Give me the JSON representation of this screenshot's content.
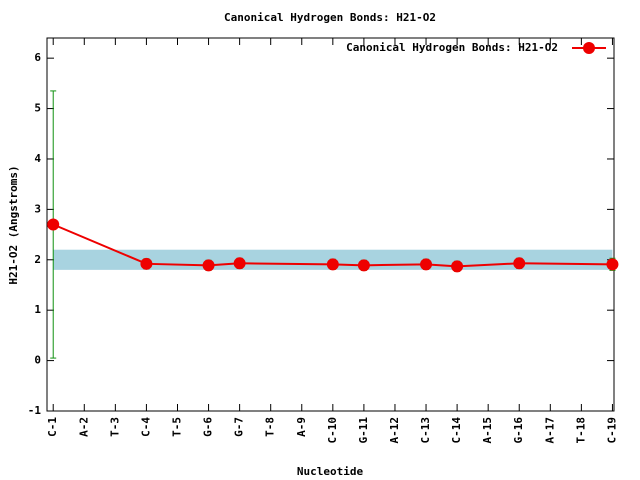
{
  "chart_data": {
    "type": "line",
    "title": "Canonical Hydrogen Bonds: H21-O2",
    "x_label": "Nucleotide",
    "y_label": "H21-O2 (Angstroms)",
    "xlim": [
      0.8,
      19.05
    ],
    "ylim": [
      -1,
      6.4
    ],
    "yticks": [
      -1,
      0,
      1,
      2,
      3,
      4,
      5,
      6
    ],
    "xticks": [
      {
        "value": 1,
        "label": "C-1"
      },
      {
        "value": 2,
        "label": "A-2"
      },
      {
        "value": 3,
        "label": "T-3"
      },
      {
        "value": 4,
        "label": "C-4"
      },
      {
        "value": 5,
        "label": "T-5"
      },
      {
        "value": 6,
        "label": "G-6"
      },
      {
        "value": 7,
        "label": "G-7"
      },
      {
        "value": 8,
        "label": "T-8"
      },
      {
        "value": 9,
        "label": "A-9"
      },
      {
        "value": 10,
        "label": "C-10"
      },
      {
        "value": 11,
        "label": "G-11"
      },
      {
        "value": 12,
        "label": "A-12"
      },
      {
        "value": 13,
        "label": "C-13"
      },
      {
        "value": 14,
        "label": "C-14"
      },
      {
        "value": 15,
        "label": "A-15"
      },
      {
        "value": 16,
        "label": "G-16"
      },
      {
        "value": 17,
        "label": "A-17"
      },
      {
        "value": 18,
        "label": "T-18"
      },
      {
        "value": 19,
        "label": "C-19"
      }
    ],
    "reference_band": [
      1.8,
      2.2
    ],
    "band_color": "#a8d3e0",
    "legend": "upper right",
    "error_color": "#109010",
    "series": [
      {
        "name": "Canonical Hydrogen Bonds: H21-O2",
        "color": "#ee0000",
        "x": [
          1,
          4,
          6,
          7,
          10,
          11,
          13,
          14,
          16,
          19
        ],
        "values": [
          2.7,
          1.92,
          1.89,
          1.93,
          1.91,
          1.89,
          1.91,
          1.87,
          1.93,
          1.91
        ],
        "errors": [
          2.65,
          0.1,
          0.1,
          0.1,
          0.1,
          0.1,
          0.1,
          0.1,
          0.1,
          0.12
        ]
      }
    ]
  }
}
